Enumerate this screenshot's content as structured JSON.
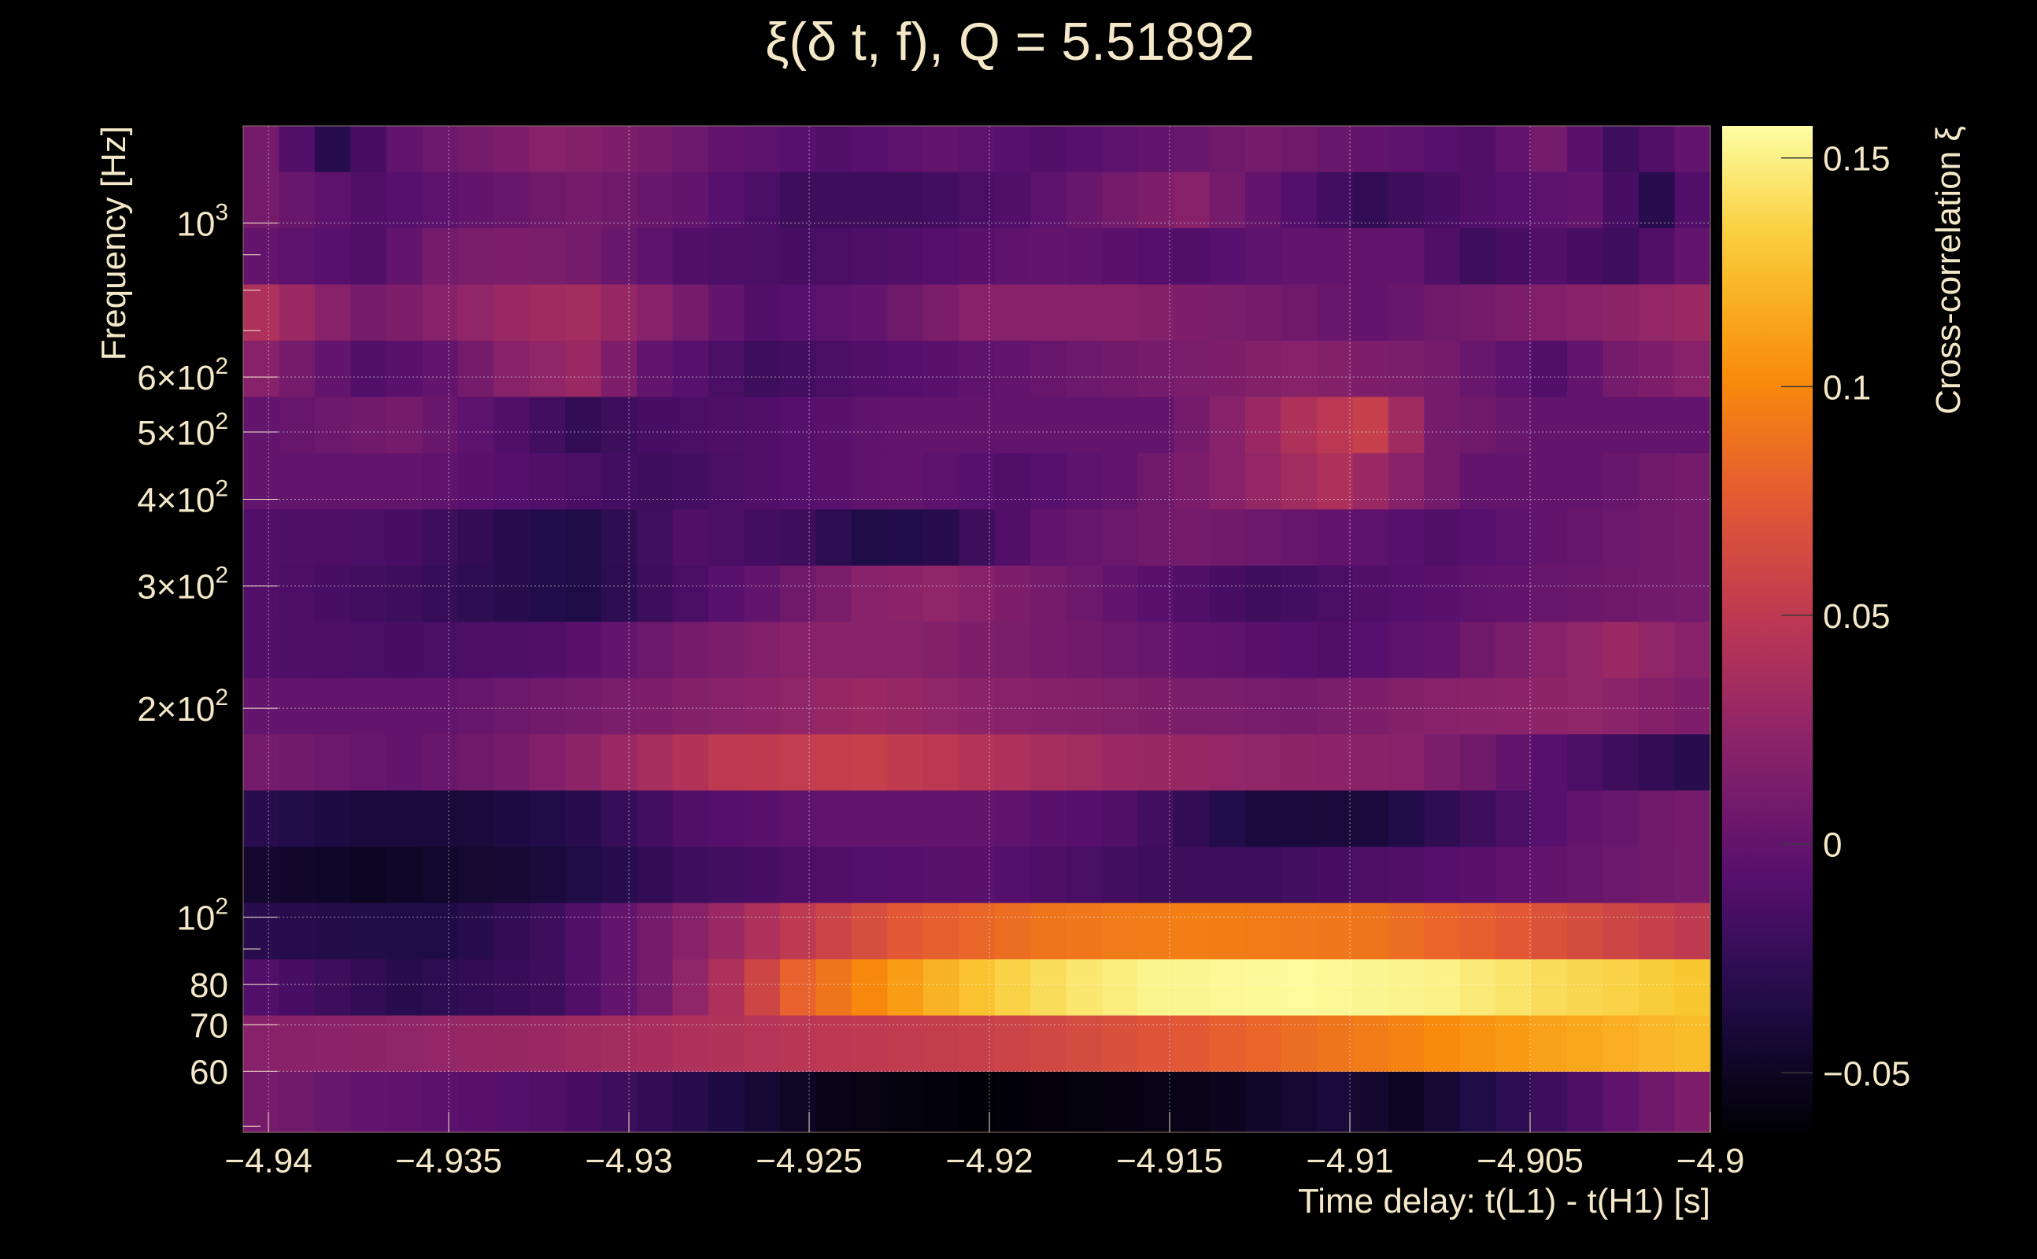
{
  "chart_data": {
    "type": "heatmap",
    "title": "ξ(δ t, f), Q = 5.51892",
    "xlabel": "Time delay: t(L1) - t(H1) [s]",
    "ylabel": "Frequency [Hz]",
    "zlabel": "Cross-correlation ξ",
    "xlim": [
      -4.9407,
      -4.9
    ],
    "ylim": [
      49,
      1380
    ],
    "y_scale": "log",
    "zlim": [
      -0.063,
      0.157
    ],
    "grid": true,
    "colormap": "inferno",
    "x_ticks": [
      {
        "value": -4.94,
        "label": "−4.94"
      },
      {
        "value": -4.935,
        "label": "−4.935"
      },
      {
        "value": -4.93,
        "label": "−4.93"
      },
      {
        "value": -4.925,
        "label": "−4.925"
      },
      {
        "value": -4.92,
        "label": "−4.92"
      },
      {
        "value": -4.915,
        "label": "−4.915"
      },
      {
        "value": -4.91,
        "label": "−4.91"
      },
      {
        "value": -4.905,
        "label": "−4.905"
      },
      {
        "value": -4.9,
        "label": "−4.9"
      }
    ],
    "y_ticks": [
      {
        "value": 60,
        "m": "60",
        "e": ""
      },
      {
        "value": 70,
        "m": "70",
        "e": ""
      },
      {
        "value": 80,
        "m": "80",
        "e": ""
      },
      {
        "value": 100,
        "m": "10",
        "e": "2"
      },
      {
        "value": 200,
        "m": "2×10",
        "e": "2"
      },
      {
        "value": 300,
        "m": "3×10",
        "e": "2"
      },
      {
        "value": 400,
        "m": "4×10",
        "e": "2"
      },
      {
        "value": 500,
        "m": "5×10",
        "e": "2"
      },
      {
        "value": 600,
        "m": "6×10",
        "e": "2"
      },
      {
        "value": 1000,
        "m": "10",
        "e": "3"
      }
    ],
    "z_ticks": [
      {
        "value": -0.05,
        "label": "−0.05"
      },
      {
        "value": 0,
        "label": "0"
      },
      {
        "value": 0.05,
        "label": "0.05"
      },
      {
        "value": 0.1,
        "label": "0.1"
      },
      {
        "value": 0.15,
        "label": "0.15"
      }
    ],
    "y_bin_edges": [
      49,
      60,
      72.3,
      87.1,
      105,
      126.5,
      152.5,
      183.7,
      221.4,
      266.8,
      321.5,
      387.4,
      466.9,
      562.6,
      678,
      817,
      984.5,
      1186,
      1380
    ],
    "x_bin_count": 41,
    "rows": [
      {
        "band": "49-60 Hz",
        "knots": [
          [
            0,
            0.01
          ],
          [
            3,
            0.0
          ],
          [
            8,
            -0.01
          ],
          [
            12,
            -0.03
          ],
          [
            16,
            -0.055
          ],
          [
            20,
            -0.062
          ],
          [
            26,
            -0.055
          ],
          [
            30,
            -0.04
          ],
          [
            32,
            -0.05
          ],
          [
            36,
            -0.02
          ],
          [
            40,
            0.015
          ]
        ]
      },
      {
        "band": "60-72 Hz",
        "knots": [
          [
            0,
            0.02
          ],
          [
            8,
            0.03
          ],
          [
            14,
            0.045
          ],
          [
            20,
            0.055
          ],
          [
            26,
            0.075
          ],
          [
            30,
            0.09
          ],
          [
            34,
            0.105
          ],
          [
            37,
            0.115
          ],
          [
            40,
            0.125
          ]
        ]
      },
      {
        "band": "72-87 Hz",
        "knots": [
          [
            0,
            -0.01
          ],
          [
            4,
            -0.03
          ],
          [
            8,
            -0.02
          ],
          [
            11,
            0.01
          ],
          [
            13,
            0.04
          ],
          [
            15,
            0.08
          ],
          [
            17,
            0.1
          ],
          [
            19,
            0.12
          ],
          [
            21,
            0.135
          ],
          [
            23,
            0.145
          ],
          [
            25,
            0.152
          ],
          [
            29,
            0.155
          ],
          [
            33,
            0.15
          ],
          [
            36,
            0.14
          ],
          [
            40,
            0.13
          ]
        ]
      },
      {
        "band": "87-105 Hz",
        "knots": [
          [
            0,
            -0.03
          ],
          [
            5,
            -0.035
          ],
          [
            8,
            -0.02
          ],
          [
            12,
            0.02
          ],
          [
            15,
            0.05
          ],
          [
            18,
            0.075
          ],
          [
            22,
            0.09
          ],
          [
            26,
            0.095
          ],
          [
            31,
            0.09
          ],
          [
            35,
            0.075
          ],
          [
            38,
            0.06
          ],
          [
            40,
            0.05
          ]
        ]
      },
      {
        "band": "105-126 Hz",
        "knots": [
          [
            0,
            -0.045
          ],
          [
            3,
            -0.05
          ],
          [
            8,
            -0.04
          ],
          [
            12,
            -0.02
          ],
          [
            16,
            -0.01
          ],
          [
            20,
            -0.005
          ],
          [
            25,
            -0.02
          ],
          [
            28,
            -0.02
          ],
          [
            32,
            -0.01
          ],
          [
            36,
            0.0
          ],
          [
            40,
            0.01
          ]
        ]
      },
      {
        "band": "126-152 Hz",
        "knots": [
          [
            0,
            -0.03
          ],
          [
            3,
            -0.04
          ],
          [
            6,
            -0.04
          ],
          [
            9,
            -0.03
          ],
          [
            12,
            -0.01
          ],
          [
            16,
            0.0
          ],
          [
            20,
            0.0
          ],
          [
            24,
            -0.01
          ],
          [
            28,
            -0.04
          ],
          [
            31,
            -0.04
          ],
          [
            34,
            -0.02
          ],
          [
            37,
            0.0
          ],
          [
            40,
            0.01
          ]
        ]
      },
      {
        "band": "152-184 Hz",
        "knots": [
          [
            0,
            0.01
          ],
          [
            4,
            0.0
          ],
          [
            7,
            0.01
          ],
          [
            10,
            0.03
          ],
          [
            13,
            0.05
          ],
          [
            17,
            0.055
          ],
          [
            21,
            0.04
          ],
          [
            24,
            0.03
          ],
          [
            28,
            0.025
          ],
          [
            32,
            0.02
          ],
          [
            35,
            0.0
          ],
          [
            38,
            -0.02
          ],
          [
            40,
            -0.03
          ]
        ]
      },
      {
        "band": "184-221 Hz",
        "knots": [
          [
            0,
            0.0
          ],
          [
            5,
            0.0
          ],
          [
            9,
            0.01
          ],
          [
            13,
            0.02
          ],
          [
            17,
            0.03
          ],
          [
            21,
            0.02
          ],
          [
            25,
            0.015
          ],
          [
            29,
            0.01
          ],
          [
            33,
            0.02
          ],
          [
            37,
            0.025
          ],
          [
            40,
            0.015
          ]
        ]
      },
      {
        "band": "221-267 Hz",
        "knots": [
          [
            0,
            -0.01
          ],
          [
            4,
            -0.015
          ],
          [
            8,
            -0.01
          ],
          [
            12,
            0.01
          ],
          [
            15,
            0.02
          ],
          [
            18,
            0.02
          ],
          [
            22,
            0.01
          ],
          [
            26,
            0.0
          ],
          [
            30,
            -0.01
          ],
          [
            33,
            0.0
          ],
          [
            36,
            0.02
          ],
          [
            38,
            0.03
          ],
          [
            40,
            0.02
          ]
        ]
      },
      {
        "band": "267-322 Hz",
        "knots": [
          [
            0,
            -0.01
          ],
          [
            4,
            -0.02
          ],
          [
            7,
            -0.03
          ],
          [
            9,
            -0.035
          ],
          [
            11,
            -0.02
          ],
          [
            14,
            0.0
          ],
          [
            17,
            0.02
          ],
          [
            19,
            0.025
          ],
          [
            22,
            0.01
          ],
          [
            26,
            -0.01
          ],
          [
            28,
            -0.02
          ],
          [
            31,
            -0.01
          ],
          [
            35,
            0.0
          ],
          [
            40,
            0.01
          ]
        ]
      },
      {
        "band": "322-387 Hz",
        "knots": [
          [
            0,
            -0.01
          ],
          [
            4,
            -0.015
          ],
          [
            7,
            -0.03
          ],
          [
            9,
            -0.035
          ],
          [
            12,
            -0.01
          ],
          [
            15,
            -0.02
          ],
          [
            17,
            -0.035
          ],
          [
            19,
            -0.03
          ],
          [
            22,
            0.0
          ],
          [
            26,
            0.01
          ],
          [
            30,
            0.0
          ],
          [
            33,
            -0.01
          ],
          [
            36,
            0.0
          ],
          [
            40,
            0.01
          ]
        ]
      },
      {
        "band": "387-467 Hz",
        "knots": [
          [
            0,
            0.0
          ],
          [
            4,
            0.0
          ],
          [
            8,
            -0.01
          ],
          [
            11,
            -0.02
          ],
          [
            14,
            -0.01
          ],
          [
            18,
            0.0
          ],
          [
            21,
            -0.01
          ],
          [
            24,
            0.0
          ],
          [
            27,
            0.02
          ],
          [
            30,
            0.04
          ],
          [
            32,
            0.02
          ],
          [
            34,
            0.0
          ],
          [
            37,
            0.0
          ],
          [
            40,
            0.01
          ]
        ]
      },
      {
        "band": "467-563 Hz",
        "knots": [
          [
            0,
            0.0
          ],
          [
            4,
            0.01
          ],
          [
            7,
            -0.01
          ],
          [
            9,
            -0.025
          ],
          [
            11,
            -0.015
          ],
          [
            14,
            -0.01
          ],
          [
            18,
            0.0
          ],
          [
            22,
            0.0
          ],
          [
            25,
            0.0
          ],
          [
            27,
            0.02
          ],
          [
            29,
            0.04
          ],
          [
            31,
            0.055
          ],
          [
            33,
            0.01
          ],
          [
            36,
            0.0
          ],
          [
            40,
            0.0
          ]
        ]
      },
      {
        "band": "563-678 Hz",
        "knots": [
          [
            0,
            0.02
          ],
          [
            3,
            -0.01
          ],
          [
            5,
            0.0
          ],
          [
            7,
            0.02
          ],
          [
            9,
            0.03
          ],
          [
            11,
            0.0
          ],
          [
            14,
            -0.02
          ],
          [
            17,
            -0.01
          ],
          [
            21,
            0.0
          ],
          [
            25,
            0.01
          ],
          [
            29,
            0.02
          ],
          [
            33,
            0.01
          ],
          [
            36,
            -0.01
          ],
          [
            38,
            0.01
          ],
          [
            40,
            0.02
          ]
        ]
      },
      {
        "band": "678-817 Hz",
        "knots": [
          [
            0,
            0.04
          ],
          [
            3,
            0.01
          ],
          [
            5,
            0.02
          ],
          [
            7,
            0.03
          ],
          [
            9,
            0.035
          ],
          [
            11,
            0.02
          ],
          [
            14,
            -0.01
          ],
          [
            17,
            0.0
          ],
          [
            20,
            0.02
          ],
          [
            24,
            0.02
          ],
          [
            28,
            0.01
          ],
          [
            31,
            0.0
          ],
          [
            34,
            0.01
          ],
          [
            37,
            0.02
          ],
          [
            40,
            0.03
          ]
        ]
      },
      {
        "band": "817-985 Hz",
        "knots": [
          [
            0,
            0.0
          ],
          [
            3,
            -0.01
          ],
          [
            5,
            0.01
          ],
          [
            7,
            0.015
          ],
          [
            9,
            0.01
          ],
          [
            12,
            -0.01
          ],
          [
            15,
            -0.015
          ],
          [
            18,
            -0.01
          ],
          [
            22,
            0.0
          ],
          [
            26,
            -0.01
          ],
          [
            29,
            0.0
          ],
          [
            32,
            0.0
          ],
          [
            34,
            -0.02
          ],
          [
            36,
            -0.01
          ],
          [
            38,
            -0.02
          ],
          [
            40,
            0.0
          ]
        ]
      },
      {
        "band": "985-1186 Hz",
        "knots": [
          [
            0,
            0.01
          ],
          [
            3,
            -0.01
          ],
          [
            6,
            0.0
          ],
          [
            9,
            0.01
          ],
          [
            12,
            0.0
          ],
          [
            15,
            -0.02
          ],
          [
            18,
            -0.02
          ],
          [
            21,
            -0.01
          ],
          [
            24,
            0.01
          ],
          [
            26,
            0.02
          ],
          [
            28,
            0.0
          ],
          [
            31,
            -0.025
          ],
          [
            34,
            -0.01
          ],
          [
            37,
            0.0
          ],
          [
            39,
            -0.03
          ],
          [
            40,
            -0.01
          ]
        ]
      },
      {
        "band": "1186-1380 Hz",
        "knots": [
          [
            0,
            0.01
          ],
          [
            2,
            -0.03
          ],
          [
            4,
            0.0
          ],
          [
            6,
            0.01
          ],
          [
            8,
            0.02
          ],
          [
            10,
            0.015
          ],
          [
            13,
            0.0
          ],
          [
            16,
            -0.01
          ],
          [
            19,
            0.0
          ],
          [
            22,
            -0.01
          ],
          [
            25,
            0.0
          ],
          [
            28,
            0.01
          ],
          [
            31,
            0.0
          ],
          [
            34,
            -0.01
          ],
          [
            36,
            0.01
          ],
          [
            38,
            -0.02
          ],
          [
            40,
            0.0
          ]
        ]
      }
    ]
  }
}
